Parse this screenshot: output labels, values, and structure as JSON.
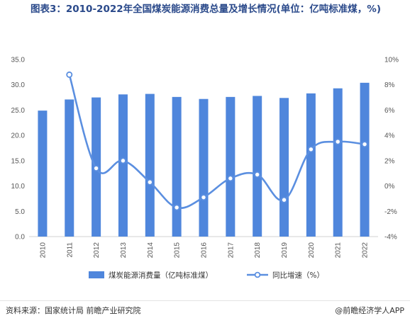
{
  "title": "图表3：2010-2022年全国煤炭能源消费总量及增长情况(单位：亿吨标准煤，%)",
  "chart_data": {
    "type": "bar",
    "categories": [
      "2010",
      "2011",
      "2012",
      "2013",
      "2014",
      "2015",
      "2016",
      "2017",
      "2018",
      "2019",
      "2020",
      "2021",
      "2022"
    ],
    "series": [
      {
        "name": "煤炭能源消费量（亿吨标准煤）",
        "type": "bar",
        "axis": "left",
        "color": "#4f86dc",
        "values": [
          24.9,
          27.1,
          27.5,
          28.1,
          28.2,
          27.6,
          27.2,
          27.6,
          27.8,
          27.4,
          28.3,
          29.3,
          30.4
        ]
      },
      {
        "name": "同比增速（%）",
        "type": "line",
        "axis": "right",
        "color": "#5b8fe0",
        "values": [
          null,
          8.8,
          1.4,
          2.0,
          0.3,
          -1.7,
          -0.9,
          0.6,
          0.9,
          -1.1,
          2.9,
          3.5,
          3.3
        ]
      }
    ],
    "y_left": {
      "min": 0,
      "max": 35,
      "ticks": [
        "0.0",
        "5.0",
        "10.0",
        "15.0",
        "20.0",
        "25.0",
        "30.0",
        "35.0"
      ]
    },
    "y_right": {
      "min": -4,
      "max": 10,
      "ticks": [
        "-4%",
        "-2%",
        "0%",
        "2%",
        "4%",
        "6%",
        "8%",
        "10%"
      ]
    },
    "legend_position": "bottom",
    "grid": false
  },
  "footer": {
    "source": "资料来源：国家统计局 前瞻产业研究院",
    "brand": "@前瞻经济学人APP"
  }
}
